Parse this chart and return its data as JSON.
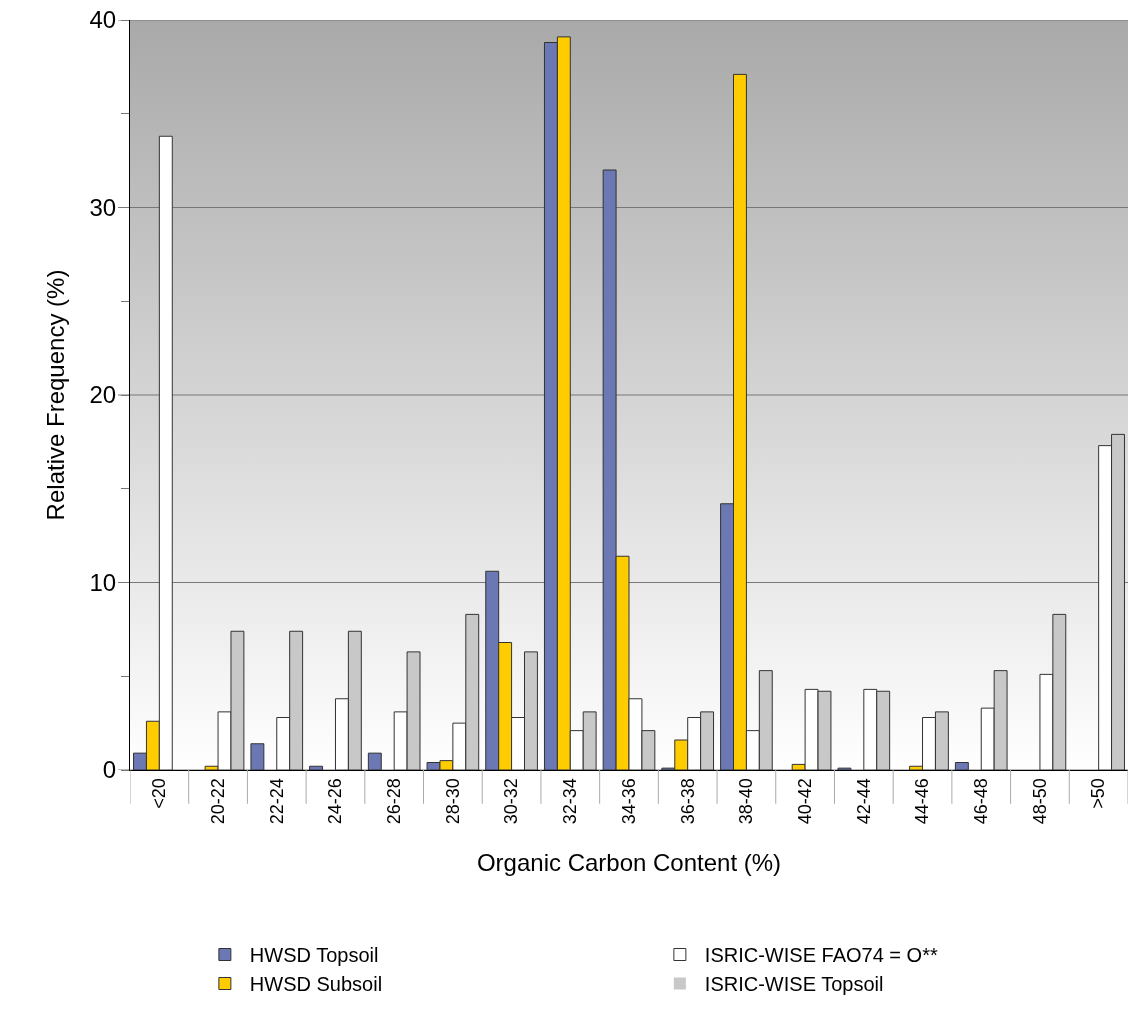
{
  "chart_data": {
    "type": "bar",
    "xlabel": "Organic Carbon Content (%)",
    "ylabel": "Relative Frequency (%)",
    "categories": [
      "<20",
      "20-22",
      "22-24",
      "24-26",
      "26-28",
      "28-30",
      "30-32",
      "32-34",
      "34-36",
      "36-38",
      "38-40",
      "40-42",
      "42-44",
      "44-46",
      "46-48",
      "48-50",
      ">50"
    ],
    "series": [
      {
        "name": "HWSD Topsoil",
        "color": "#6b78b4",
        "values": [
          0.9,
          0,
          1.4,
          0.2,
          0.9,
          0.4,
          10.6,
          38.8,
          32.0,
          0.1,
          14.2,
          0,
          0.1,
          0,
          0.4,
          0,
          0
        ]
      },
      {
        "name": "HWSD Subsoil",
        "color": "#ffcc00",
        "values": [
          2.6,
          0.2,
          0,
          0,
          0,
          0.5,
          6.8,
          39.1,
          11.4,
          1.6,
          37.1,
          0.3,
          0,
          0.2,
          0,
          0,
          0
        ]
      },
      {
        "name": "ISRIC-WISE FAO74 = O**",
        "color": "#ffffff",
        "values": [
          33.8,
          3.1,
          2.8,
          3.8,
          3.1,
          2.5,
          2.8,
          2.1,
          3.8,
          2.8,
          2.1,
          4.3,
          4.3,
          2.8,
          3.3,
          5.1,
          17.3
        ]
      },
      {
        "name": "ISRIC-WISE Topsoil",
        "color": "#c8c8c8",
        "values": [
          0,
          7.4,
          7.4,
          7.4,
          6.3,
          8.3,
          6.3,
          3.1,
          2.1,
          3.1,
          5.3,
          4.2,
          4.2,
          3.1,
          5.3,
          8.3,
          17.9
        ]
      }
    ],
    "ylim": [
      0,
      40
    ],
    "yticks": [
      0,
      {
        "value": 5,
        "label": null
      },
      10,
      {
        "value": 15,
        "label": null
      },
      20,
      {
        "value": 25,
        "label": null
      },
      30,
      {
        "value": 35,
        "label": null
      },
      40
    ],
    "grid": "y",
    "legend": "bottom"
  }
}
